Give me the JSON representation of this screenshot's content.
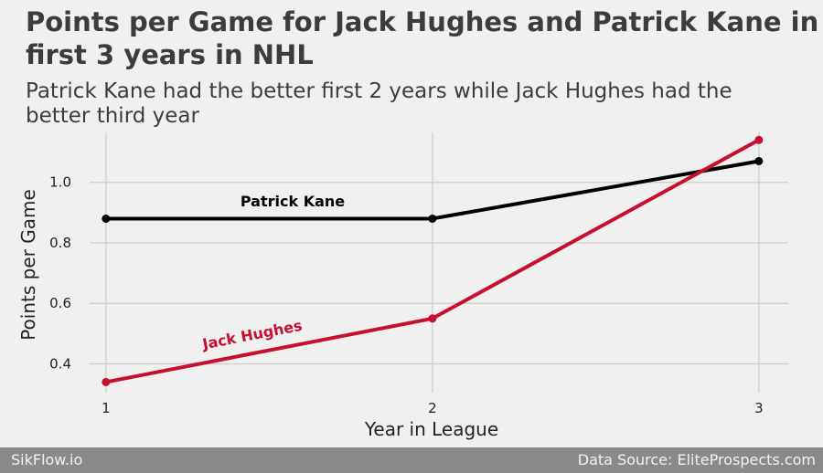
{
  "chart_data": {
    "type": "line",
    "title": "Points per Game for Jack Hughes and Patrick Kane in first 3 years in NHL",
    "subtitle": "Patrick Kane had the better first 2 years while Jack Hughes had the better third year",
    "xlabel": "Year in League",
    "ylabel": "Points per Game",
    "x": [
      1,
      2,
      3
    ],
    "xticks": [
      "1",
      "2",
      "3"
    ],
    "yticks": [
      "0.4",
      "0.6",
      "0.8",
      "1.0"
    ],
    "xlim": [
      0.95,
      3.09
    ],
    "ylim": [
      0.305,
      1.165
    ],
    "grid": true,
    "series": [
      {
        "name": "Patrick Kane",
        "values": [
          0.88,
          0.88,
          1.07
        ],
        "color": "#000000"
      },
      {
        "name": "Jack Hughes",
        "values": [
          0.34,
          0.55,
          1.14
        ],
        "color": "#c8102e"
      }
    ]
  },
  "footer": {
    "left": "SikFlow.io",
    "right": "Data Source: EliteProspects.com"
  }
}
